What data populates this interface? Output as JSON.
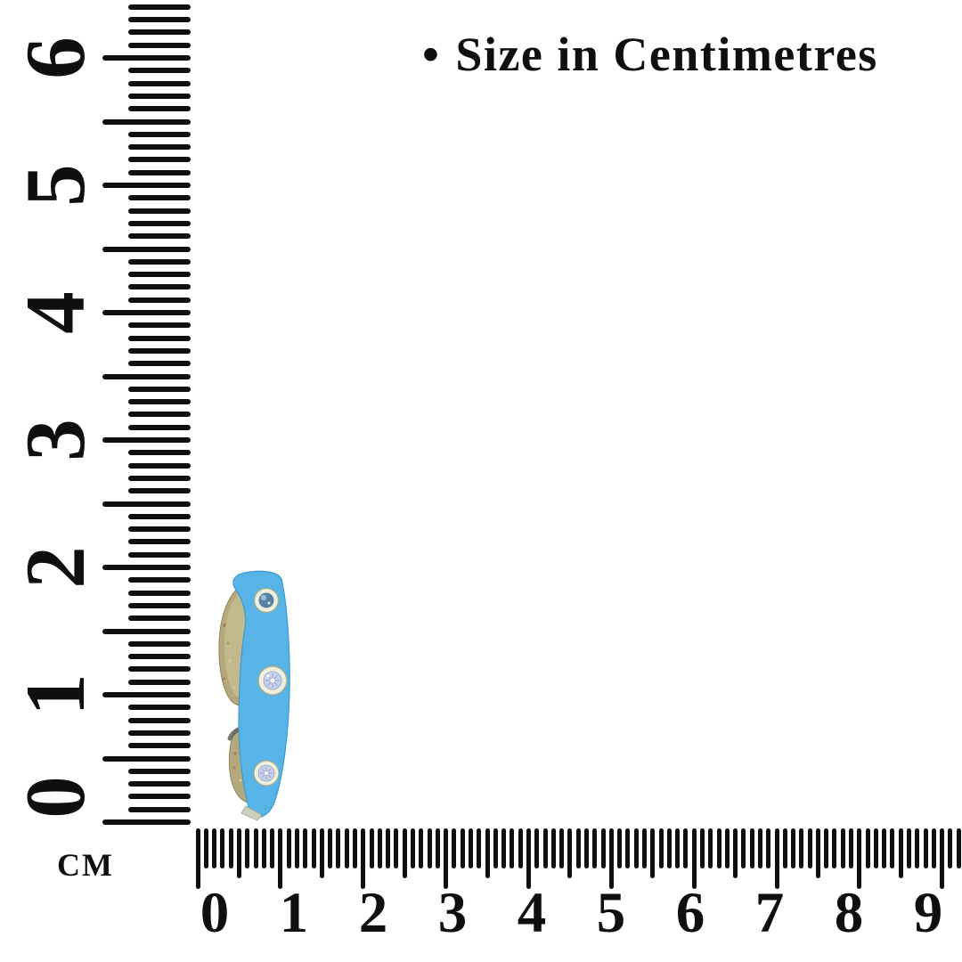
{
  "title": {
    "bullet": "•",
    "text": "Size in Centimetres"
  },
  "unit_label": "CM",
  "rulers": {
    "vertical": {
      "orientation": "vertical",
      "unit": "cm",
      "numbers": [
        "0",
        "1",
        "2",
        "3",
        "4",
        "5",
        "6"
      ]
    },
    "horizontal": {
      "orientation": "horizontal",
      "unit": "cm",
      "numbers": [
        "0",
        "1",
        "2",
        "3",
        "4",
        "5",
        "6",
        "7",
        "8",
        "9"
      ]
    }
  },
  "ring": {
    "label": "blue-enamel-crystal-ring-side-view",
    "crystal_count": 3,
    "approx_length_cm": 1.9,
    "colors": {
      "enamel_blue": "#58b4e6",
      "enamel_edge": "#3d9bcd",
      "metal_champagne": "#b5a87c",
      "metal_light": "#cfc49a",
      "metal_edge": "#8f845c",
      "bezel_rim": "#edefdf",
      "bezel_rim_edge": "#a2aa8c",
      "gem_clear": "#c9d1ed",
      "gem_clear_edge": "#97a0c6",
      "gem_blue": "#57819e",
      "gem_blue_light": "#9ec3d8",
      "tip_silver": "#cbcfc2",
      "tip_silver_edge": "#9fa396",
      "shadow": "#60605a"
    }
  },
  "colors": {
    "background": "#ffffff",
    "ink": "#0f0f0f"
  }
}
